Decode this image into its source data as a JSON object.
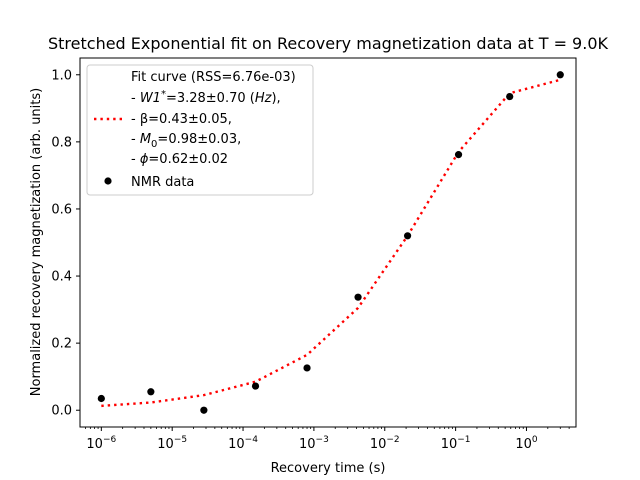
{
  "chart_data": {
    "type": "scatter",
    "title": "Stretched Exponential fit on Recovery magnetization data at T = 9.0K",
    "xlabel": "Recovery time (s)",
    "ylabel": "Normalized recovery magnetization (arb. units)",
    "xscale": "log",
    "xlim": [
      5e-07,
      5
    ],
    "ylim": [
      -0.05,
      1.05
    ],
    "x_ticks": [
      {
        "value": 1e-06,
        "base": "10",
        "exp": "−6"
      },
      {
        "value": 1e-05,
        "base": "10",
        "exp": "−5"
      },
      {
        "value": 0.0001,
        "base": "10",
        "exp": "−4"
      },
      {
        "value": 0.001,
        "base": "10",
        "exp": "−3"
      },
      {
        "value": 0.01,
        "base": "10",
        "exp": "−2"
      },
      {
        "value": 0.1,
        "base": "10",
        "exp": "−1"
      },
      {
        "value": 1,
        "base": "10",
        "exp": "0"
      }
    ],
    "y_ticks": [
      "0.0",
      "0.2",
      "0.4",
      "0.6",
      "0.8",
      "1.0"
    ],
    "grid": false,
    "legend_position": "top-left",
    "series": [
      {
        "name": "Fit curve",
        "kind": "line",
        "style": "dotted",
        "color": "#ff0000",
        "legend_lines": [
          "Fit curve (RSS=6.76e-03)",
          "- W1*=3.28±0.70 (Hz),",
          "- β=0.43±0.05,",
          "- M0=0.98±0.03,",
          "- ϕ=0.62±0.02"
        ],
        "x": [
          1e-06,
          5e-06,
          2.8e-05,
          0.00015,
          0.0008,
          0.0042,
          0.021,
          0.11,
          0.58,
          3.0
        ],
        "y": [
          0.013,
          0.023,
          0.045,
          0.085,
          0.165,
          0.305,
          0.52,
          0.77,
          0.945,
          0.985
        ]
      },
      {
        "name": "NMR data",
        "kind": "scatter",
        "color": "#000000",
        "x": [
          1e-06,
          5e-06,
          2.8e-05,
          0.00015,
          0.0008,
          0.0042,
          0.021,
          0.11,
          0.58,
          3.0
        ],
        "y": [
          0.035,
          0.055,
          0.0,
          0.072,
          0.126,
          0.337,
          0.52,
          0.762,
          0.935,
          1.0
        ]
      }
    ]
  }
}
